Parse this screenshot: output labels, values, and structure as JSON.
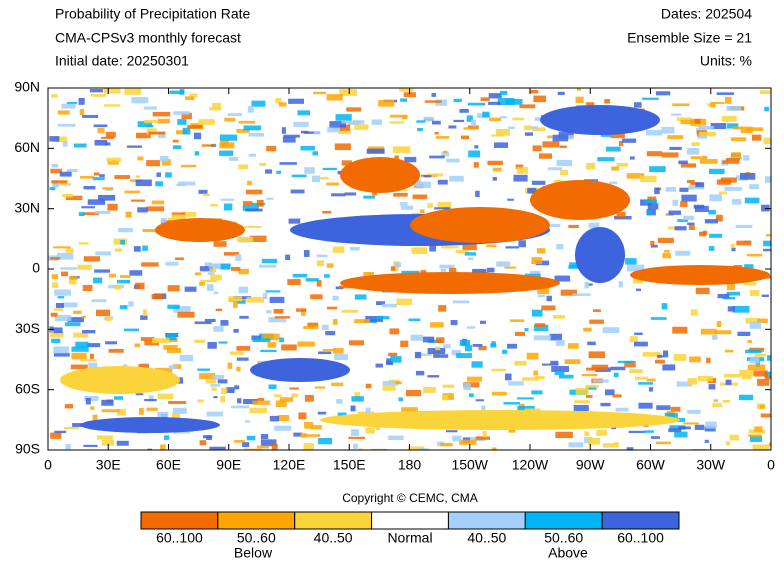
{
  "header": {
    "left": [
      "Probability of Precipitation Rate",
      "CMA-CPSv3 monthly forecast",
      "Initial date: 20250301"
    ],
    "right": [
      "Dates: 202504",
      "Ensemble Size = 21",
      "Units: %"
    ]
  },
  "map": {
    "lat_labels": [
      "90N",
      "60N",
      "30N",
      "0",
      "30S",
      "60S",
      "90S"
    ],
    "lon_labels": [
      "0",
      "30E",
      "60E",
      "90E",
      "120E",
      "150E",
      "180",
      "150W",
      "120W",
      "90W",
      "60W",
      "30W",
      "0"
    ]
  },
  "copyright": "Copyright © CEMC, CMA",
  "legend": {
    "items": [
      {
        "label": "60..100",
        "color": "#f26b00"
      },
      {
        "label": "50..60",
        "color": "#ffa600"
      },
      {
        "label": "40..50",
        "color": "#fad43a"
      },
      {
        "label": "Normal",
        "color": "#ffffff"
      },
      {
        "label": "40..50",
        "color": "#a3cffa"
      },
      {
        "label": "50..60",
        "color": "#00b4f5"
      },
      {
        "label": "60..100",
        "color": "#3d64dc"
      }
    ],
    "below": "Below",
    "above": "Above"
  }
}
